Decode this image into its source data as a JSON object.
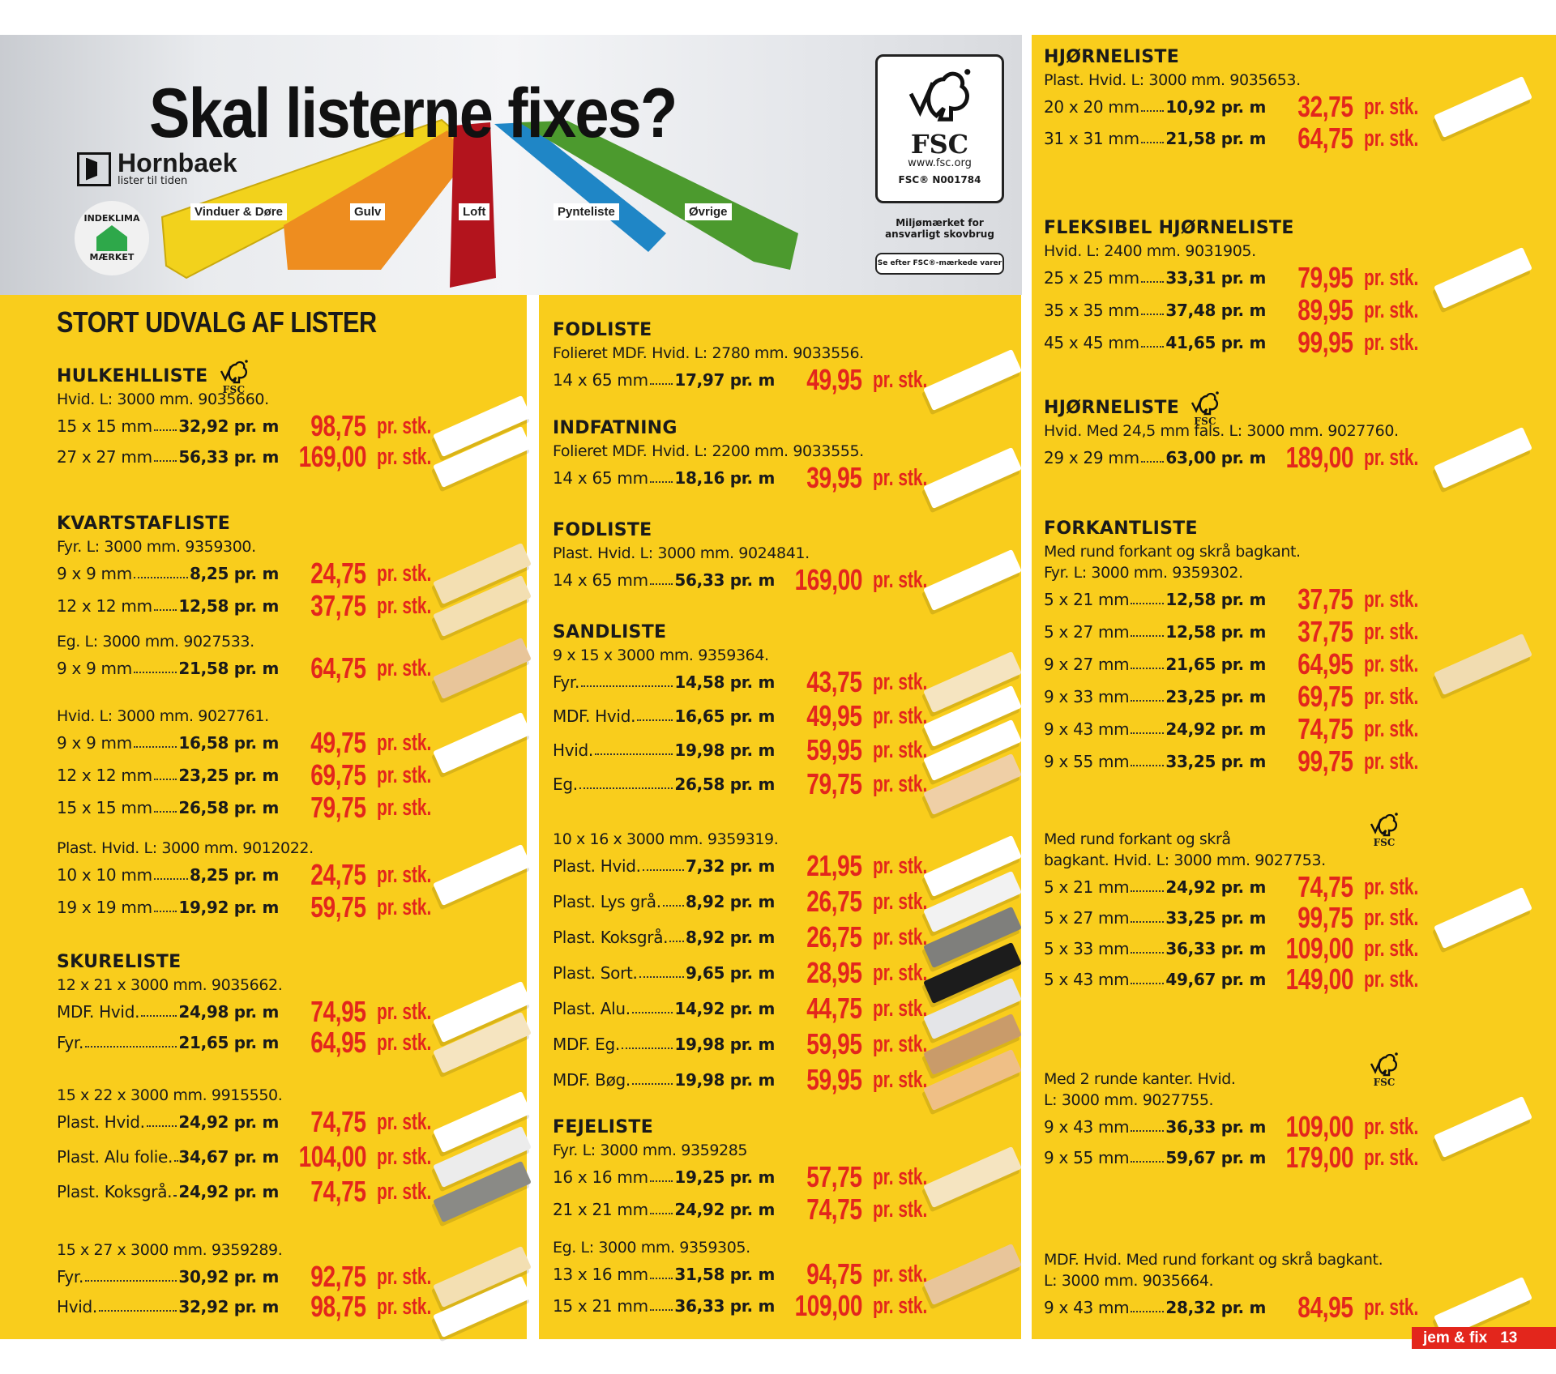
{
  "banner": {
    "title": "Skal listerne fixes?",
    "brand": "Hornbaek",
    "brand_tagline": "lister til tiden",
    "eco_badge": [
      "INDEKLIMA",
      "MÆRKET"
    ],
    "strip_labels": [
      "Vinduer & Døre",
      "Gulv",
      "Loft",
      "Pynteliste",
      "Øvrige"
    ],
    "strip_colors": [
      "#f2d21c",
      "#ee8d1f",
      "#b3141d",
      "#1f86c6",
      "#4c9a2e"
    ],
    "fsc": {
      "logo": "FSC",
      "url": "www.fsc.org",
      "code": "FSC® N001784",
      "note": "Miljømærket for ansvarligt skovbrug",
      "pill": "Se efter FSC®-mærkede varer"
    }
  },
  "price_unit": "pr. stk.",
  "fsc_label": "FSC",
  "section_title": "STORT UDVALG AF LISTER",
  "columns": [
    {
      "blocks": [
        {
          "heading": "HULKEHLLISTE",
          "fsc": "inline",
          "desc": [
            "Hvid. L: 3000 mm. 9035660."
          ],
          "rows": [
            {
              "label": "15 x 15 mm",
              "per_m": "32,92 pr. m",
              "price": "98,75",
              "swatch": "#ffffff"
            },
            {
              "label": "27 x 27 mm",
              "per_m": "56,33 pr. m",
              "price": "169,00",
              "swatch": "#ffffff"
            }
          ]
        },
        {
          "heading": "KVARTSTAFLISTE",
          "desc": [
            "Fyr. L: 3000 mm. 9359300."
          ],
          "rows": [
            {
              "label": "9 x 9 mm",
              "per_m": "8,25 pr. m",
              "price": "24,75",
              "swatch": "#f3dfb2"
            },
            {
              "label": "12 x 12 mm",
              "per_m": "12,58 pr. m",
              "price": "37,75",
              "swatch": "#f3dfb2"
            }
          ]
        },
        {
          "desc": [
            "Eg. L: 3000 mm. 9027533."
          ],
          "rows": [
            {
              "label": "9 x 9 mm",
              "per_m": "21,58 pr. m",
              "price": "64,75",
              "swatch": "#e8c59a"
            }
          ]
        },
        {
          "desc": [
            "Hvid. L: 3000 mm. 9027761."
          ],
          "rows": [
            {
              "label": "9 x 9 mm",
              "per_m": "16,58 pr. m",
              "price": "49,75",
              "swatch": "#ffffff"
            },
            {
              "label": "12 x 12 mm",
              "per_m": "23,25 pr. m",
              "price": "69,75"
            },
            {
              "label": "15 x 15 mm",
              "per_m": "26,58 pr. m",
              "price": "79,75"
            }
          ]
        },
        {
          "desc": [
            "Plast. Hvid. L: 3000 mm. 9012022."
          ],
          "rows": [
            {
              "label": "10 x 10 mm",
              "per_m": "8,25 pr. m",
              "price": "24,75",
              "swatch": "#ffffff"
            },
            {
              "label": "19 x 19 mm",
              "per_m": "19,92 pr. m",
              "price": "59,75"
            }
          ]
        },
        {
          "heading": "SKURELISTE",
          "desc": [
            "12 x 21 x 3000 mm. 9035662."
          ],
          "rows": [
            {
              "label": "MDF. Hvid.",
              "per_m": "24,98 pr. m",
              "price": "74,95",
              "swatch": "#ffffff"
            },
            {
              "label": "Fyr.",
              "per_m": "21,65 pr. m",
              "price": "64,95",
              "swatch": "#f5e4c0"
            }
          ]
        },
        {
          "desc": [
            "15 x 22 x 3000 mm. 9915550."
          ],
          "rows": [
            {
              "label": "Plast. Hvid.",
              "per_m": "24,92 pr. m",
              "price": "74,75",
              "swatch": "#ffffff"
            },
            {
              "label": "Plast. Alu folie.",
              "per_m": "34,67 pr. m",
              "price": "104,00",
              "swatch": "#ececec"
            },
            {
              "label": "Plast. Koksgrå.",
              "per_m": "24,92 pr. m",
              "price": "74,75",
              "swatch": "#8a8a86"
            }
          ]
        },
        {
          "desc": [
            "15 x 27 x 3000 mm. 9359289."
          ],
          "rows": [
            {
              "label": "Fyr.",
              "per_m": "30,92 pr. m",
              "price": "92,75",
              "swatch": "#f3dfb2"
            },
            {
              "label": "Hvid.",
              "per_m": "32,92 pr. m",
              "price": "98,75",
              "swatch": "#ffffff"
            }
          ]
        }
      ]
    },
    {
      "blocks": [
        {
          "heading": "FODLISTE",
          "desc": [
            "Folieret MDF. Hvid. L: 2780 mm. 9033556."
          ],
          "rows": [
            {
              "label": "14 x 65 mm",
              "per_m": "17,97 pr. m",
              "price": "49,95",
              "swatch": "#ffffff"
            }
          ]
        },
        {
          "heading": "INDFATNING",
          "desc": [
            "Folieret MDF. Hvid. L: 2200 mm. 9033555."
          ],
          "rows": [
            {
              "label": "14 x 65 mm",
              "per_m": "18,16 pr. m",
              "price": "39,95",
              "swatch": "#ffffff"
            }
          ]
        },
        {
          "heading": "FODLISTE",
          "desc": [
            "Plast. Hvid. L: 3000 mm. 9024841."
          ],
          "rows": [
            {
              "label": "14 x 65 mm",
              "per_m": "56,33 pr. m",
              "price": "169,00",
              "swatch": "#ffffff"
            }
          ]
        },
        {
          "heading": "SANDLISTE",
          "desc": [
            "9 x 15 x 3000 mm. 9359364."
          ],
          "rows": [
            {
              "label": "Fyr.",
              "per_m": "14,58 pr. m",
              "price": "43,75",
              "swatch": "#f5e4c0"
            },
            {
              "label": "MDF. Hvid.",
              "per_m": "16,65 pr. m",
              "price": "49,95",
              "swatch": "#ffffff"
            },
            {
              "label": "Hvid.",
              "per_m": "19,98 pr. m",
              "price": "59,95",
              "swatch": "#ffffff"
            },
            {
              "label": "Eg.",
              "per_m": "26,58 pr. m",
              "price": "79,75",
              "swatch": "#efcfa6"
            }
          ]
        },
        {
          "desc": [
            "10 x 16 x 3000 mm. 9359319."
          ],
          "rows": [
            {
              "label": "Plast. Hvid.",
              "per_m": "7,32 pr. m",
              "price": "21,95",
              "swatch": "#ffffff"
            },
            {
              "label": "Plast. Lys grå.",
              "per_m": "8,92 pr. m",
              "price": "26,75",
              "swatch": "#f2f2f2"
            },
            {
              "label": "Plast. Koksgrå.",
              "per_m": "8,92 pr. m",
              "price": "26,75",
              "swatch": "#7f7f7c"
            },
            {
              "label": "Plast. Sort.",
              "per_m": "9,65 pr. m",
              "price": "28,95",
              "swatch": "#1c1c1c"
            },
            {
              "label": "Plast. Alu.",
              "per_m": "14,92 pr. m",
              "price": "44,75",
              "swatch": "#e4e5e8"
            },
            {
              "label": "MDF. Eg.",
              "per_m": "19,98 pr. m",
              "price": "59,95",
              "swatch": "#c99b6a"
            },
            {
              "label": "MDF. Bøg.",
              "per_m": "19,98 pr. m",
              "price": "59,95",
              "swatch": "#efbf86"
            }
          ]
        },
        {
          "heading": "FEJELISTE",
          "desc": [
            "Fyr. L: 3000 mm. 9359285"
          ],
          "rows": [
            {
              "label": "16 x 16 mm",
              "per_m": "19,25 pr. m",
              "price": "57,75",
              "swatch": "#f5e4c0"
            },
            {
              "label": "21 x 21 mm",
              "per_m": "24,92 pr. m",
              "price": "74,75"
            }
          ]
        },
        {
          "desc": [
            "Eg. L: 3000 mm. 9359305."
          ],
          "rows": [
            {
              "label": "13 x 16 mm",
              "per_m": "31,58 pr. m",
              "price": "94,75",
              "swatch": "#e8c59a"
            },
            {
              "label": "15 x 21 mm",
              "per_m": "36,33 pr. m",
              "price": "109,00"
            }
          ]
        }
      ]
    },
    {
      "blocks": [
        {
          "heading": "HJØRNELISTE",
          "desc": [
            "Plast. Hvid. L: 3000 mm. 9035653."
          ],
          "rows": [
            {
              "label": "20 x 20 mm",
              "per_m": "10,92 pr. m",
              "price": "32,75",
              "swatch": "#ffffff"
            },
            {
              "label": "31 x 31 mm",
              "per_m": "21,58 pr. m",
              "price": "64,75"
            }
          ]
        },
        {
          "heading": "FLEKSIBEL HJØRNELISTE",
          "desc": [
            "Hvid. L: 2400 mm. 9031905."
          ],
          "rows": [
            {
              "label": "25 x 25 mm",
              "per_m": "33,31 pr. m",
              "price": "79,95",
              "swatch": "#ffffff"
            },
            {
              "label": "35 x 35 mm",
              "per_m": "37,48 pr. m",
              "price": "89,95"
            },
            {
              "label": "45 x 45 mm",
              "per_m": "41,65 pr. m",
              "price": "99,95"
            }
          ]
        },
        {
          "heading": "HJØRNELISTE",
          "fsc": "inline",
          "desc": [
            "Hvid. Med 24,5 mm fals. L: 3000 mm. 9027760."
          ],
          "rows": [
            {
              "label": "29 x 29 mm",
              "per_m": "63,00 pr. m",
              "price": "189,00",
              "swatch": "#ffffff"
            }
          ]
        },
        {
          "heading": "FORKANTLISTE",
          "desc": [
            "Med rund forkant og skrå bagkant.",
            "Fyr. L: 3000 mm. 9359302."
          ],
          "rows": [
            {
              "label": "5 x 21 mm",
              "per_m": "12,58 pr. m",
              "price": "37,75"
            },
            {
              "label": "5 x 27 mm",
              "per_m": "12,58 pr. m",
              "price": "37,75"
            },
            {
              "label": "9 x 27 mm",
              "per_m": "21,65 pr. m",
              "price": "64,95",
              "swatch": "#f1dcb0"
            },
            {
              "label": "9 x 33 mm",
              "per_m": "23,25 pr. m",
              "price": "69,75"
            },
            {
              "label": "9 x 43 mm",
              "per_m": "24,92 pr. m",
              "price": "74,75"
            },
            {
              "label": "9 x 55 mm",
              "per_m": "33,25 pr. m",
              "price": "99,75"
            }
          ]
        },
        {
          "fsc": "side",
          "desc": [
            "Med rund forkant og skrå",
            "bagkant. Hvid. L: 3000 mm. 9027753."
          ],
          "rows": [
            {
              "label": "5 x 21 mm",
              "per_m": "24,92 pr. m",
              "price": "74,75"
            },
            {
              "label": "5 x 27 mm",
              "per_m": "33,25 pr. m",
              "price": "99,75",
              "swatch": "#ffffff"
            },
            {
              "label": "5 x 33 mm",
              "per_m": "36,33 pr. m",
              "price": "109,00"
            },
            {
              "label": "5 x 43 mm",
              "per_m": "49,67 pr. m",
              "price": "149,00"
            }
          ]
        },
        {
          "fsc": "side",
          "desc": [
            "Med 2 runde kanter. Hvid.",
            "L: 3000 mm. 9027755."
          ],
          "rows": [
            {
              "label": "9 x 43 mm",
              "per_m": "36,33 pr. m",
              "price": "109,00",
              "swatch": "#ffffff"
            },
            {
              "label": "9 x 55 mm",
              "per_m": "59,67 pr. m",
              "price": "179,00"
            }
          ]
        },
        {
          "desc": [
            "MDF. Hvid. Med rund forkant og skrå bagkant.",
            "L: 3000 mm. 9035664."
          ],
          "rows": [
            {
              "label": "9 x 43 mm",
              "per_m": "28,32 pr. m",
              "price": "84,95",
              "swatch": "#ffffff"
            }
          ]
        }
      ]
    }
  ],
  "footer": {
    "brand": "jem & fix",
    "page": "13"
  },
  "colors": {
    "panel": "#f9cd1c",
    "price": "#e3261c"
  }
}
